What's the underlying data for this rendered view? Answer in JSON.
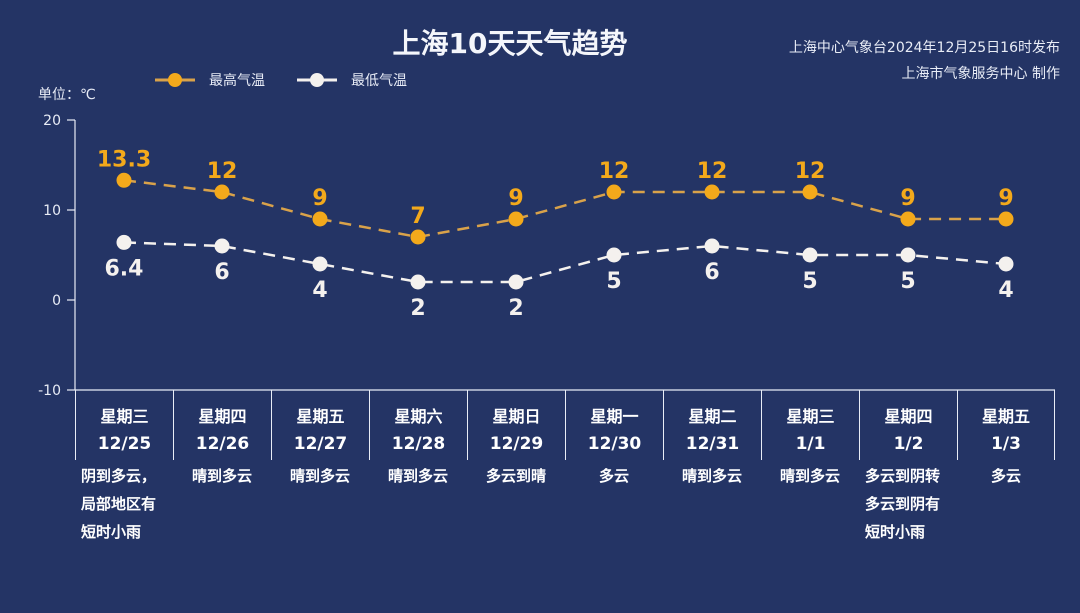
{
  "title": "上海10天天气趋势",
  "source": {
    "line1": "上海中心气象台2024年12月25日16时发布",
    "line2": "上海市气象服务中心 制作"
  },
  "unit_label": "单位：℃",
  "legend": [
    {
      "label": "最高气温",
      "color": "#f3a91b"
    },
    {
      "label": "最低气温",
      "color": "#f4f1ee"
    }
  ],
  "colors": {
    "background": "#243465",
    "high": "#f3a91b",
    "low": "#f4f1ee",
    "axis": "#e8ecf6"
  },
  "days": [
    {
      "dow": "星期三",
      "date": "12/25",
      "weather": [
        "阴到多云，",
        "局部地区有",
        "短时小雨"
      ]
    },
    {
      "dow": "星期四",
      "date": "12/26",
      "weather": [
        "晴到多云"
      ]
    },
    {
      "dow": "星期五",
      "date": "12/27",
      "weather": [
        "晴到多云"
      ]
    },
    {
      "dow": "星期六",
      "date": "12/28",
      "weather": [
        "晴到多云"
      ]
    },
    {
      "dow": "星期日",
      "date": "12/29",
      "weather": [
        "多云到晴"
      ]
    },
    {
      "dow": "星期一",
      "date": "12/30",
      "weather": [
        "多云"
      ]
    },
    {
      "dow": "星期二",
      "date": "12/31",
      "weather": [
        "晴到多云"
      ]
    },
    {
      "dow": "星期三",
      "date": "1/1",
      "weather": [
        "晴到多云"
      ]
    },
    {
      "dow": "星期四",
      "date": "1/2",
      "weather": [
        "多云到阴转",
        "多云到阴有",
        "短时小雨"
      ]
    },
    {
      "dow": "星期五",
      "date": "1/3",
      "weather": [
        "多云"
      ]
    }
  ],
  "chart_data": {
    "type": "line",
    "title": "上海10天天气趋势",
    "xlabel": "",
    "ylabel": "单位：℃",
    "categories": [
      "12/25",
      "12/26",
      "12/27",
      "12/28",
      "12/29",
      "12/30",
      "12/31",
      "1/1",
      "1/2",
      "1/3"
    ],
    "series": [
      {
        "name": "最高气温",
        "values": [
          13.3,
          12,
          9,
          7,
          9,
          12,
          12,
          12,
          9,
          9
        ]
      },
      {
        "name": "最低气温",
        "values": [
          6.4,
          6,
          4,
          2,
          2,
          5,
          6,
          5,
          5,
          4
        ]
      }
    ],
    "ylim": [
      -10,
      20
    ],
    "yticks": [
      -10,
      0,
      10,
      20
    ],
    "grid": false,
    "legend_position": "top-left",
    "line_style": "dashed"
  }
}
